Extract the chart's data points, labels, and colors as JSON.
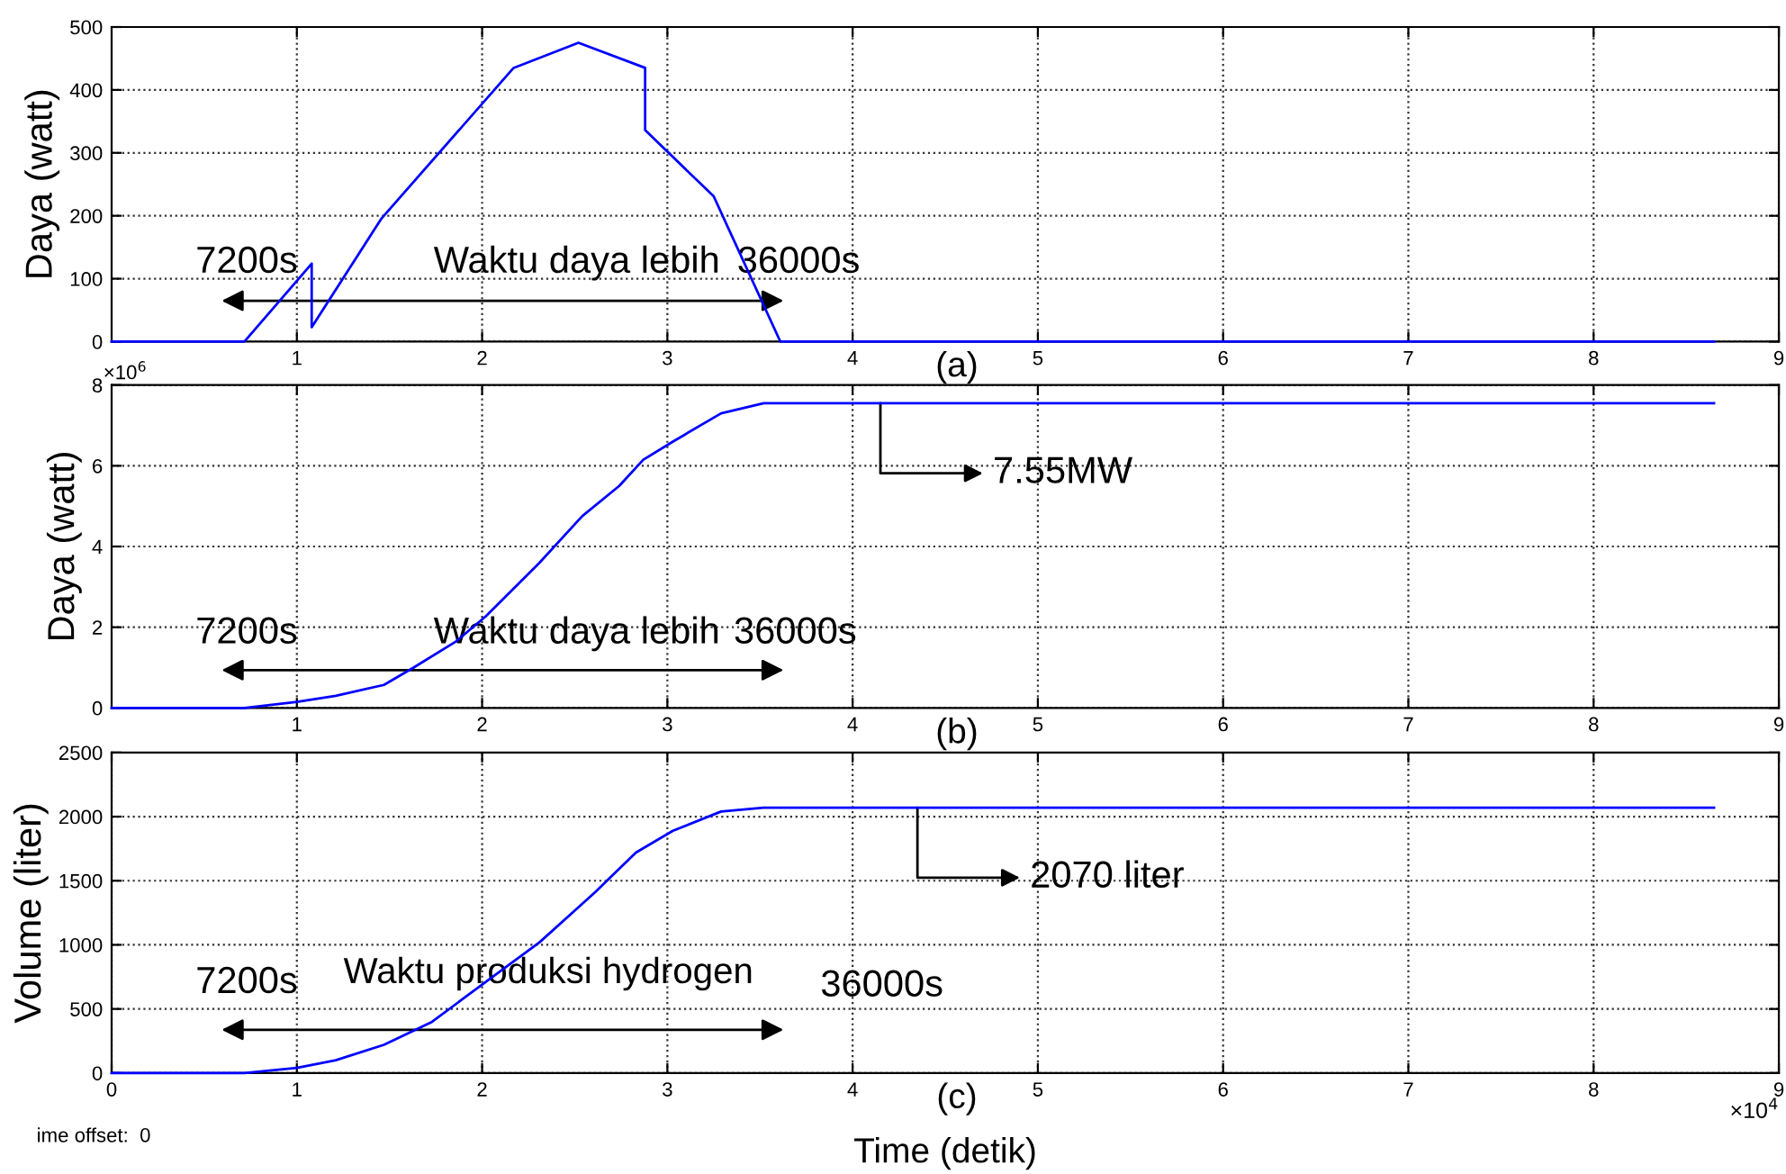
{
  "chart_data": [
    {
      "type": "line",
      "ylabel": "Daya (watt)",
      "xlabel": "(a)",
      "xlim": [
        0,
        9
      ],
      "xticks": [
        1,
        2,
        3,
        4,
        5,
        6,
        7,
        8,
        9
      ],
      "ylim": [
        0,
        500
      ],
      "yticks": [
        0,
        100,
        200,
        300,
        400,
        500
      ],
      "grid": true,
      "series": [
        {
          "color": "#0000ff",
          "x": [
            0,
            0.717,
            1.08,
            1.08,
            1.455,
            2.17,
            2.52,
            2.88,
            2.88,
            3.25,
            3.61,
            8.65
          ],
          "values": [
            0,
            0,
            124,
            23,
            195,
            435,
            475,
            435,
            336,
            231,
            0,
            0
          ]
        }
      ],
      "annotations": [
        "7200s",
        "Waktu daya lebih",
        "36000s"
      ]
    },
    {
      "type": "line",
      "ylabel": "Daya (watt)",
      "xlabel": "(b)",
      "xlim": [
        0,
        9
      ],
      "xticks": [
        1,
        2,
        3,
        4,
        5,
        6,
        7,
        8,
        9
      ],
      "ylim": [
        0,
        8
      ],
      "yticks": [
        0,
        2,
        4,
        6,
        8
      ],
      "grid": true,
      "series": [
        {
          "color": "#0000ff",
          "x": [
            0,
            0.717,
            1.0,
            1.21,
            1.47,
            1.63,
            1.86,
            2.02,
            2.31,
            2.54,
            2.74,
            2.87,
            3.03,
            3.29,
            3.52,
            8.65
          ],
          "values": [
            0,
            0,
            0.15,
            0.3,
            0.57,
            1.0,
            1.65,
            2.27,
            3.6,
            4.75,
            5.5,
            6.15,
            6.6,
            7.3,
            7.55,
            7.55
          ]
        }
      ],
      "annotations": [
        "×10$^{6}$",
        "7200s",
        "Waktu daya lebih",
        "36000s",
        {
          "text": "7.55MW",
          "x": 4.15,
          "y": 7.55
        }
      ]
    },
    {
      "type": "line",
      "ylabel": "Volume (liter)",
      "xlabel": "(c)",
      "xlim": [
        0,
        9
      ],
      "xticks": [
        0,
        1,
        2,
        3,
        4,
        5,
        6,
        7,
        8,
        9
      ],
      "ylim": [
        0,
        2500
      ],
      "yticks": [
        0,
        500,
        1000,
        1500,
        2000,
        2500
      ],
      "grid": true,
      "series": [
        {
          "color": "#0000ff",
          "x": [
            0,
            0.717,
            1.0,
            1.21,
            1.47,
            1.73,
            2.0,
            2.31,
            2.61,
            2.83,
            3.03,
            3.29,
            3.52,
            8.65
          ],
          "values": [
            0,
            0,
            40,
            100,
            220,
            400,
            690,
            1020,
            1410,
            1720,
            1890,
            2040,
            2070,
            2070
          ]
        }
      ],
      "annotations": [
        "Time (detik)",
        "ime offset:  0",
        "×10$^{4}$",
        "7200s",
        "Waktu produksi hydrogen",
        "36000s",
        {
          "text": "2070 liter",
          "x": 4.35,
          "y": 2070
        }
      ]
    }
  ]
}
